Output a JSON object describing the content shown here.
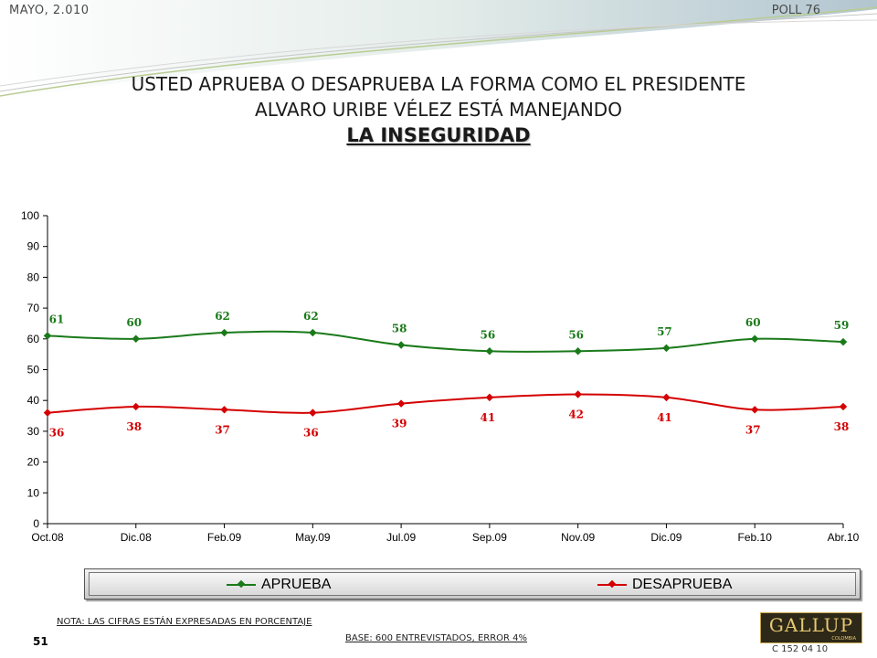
{
  "header": {
    "date": "MAYO, 2.010",
    "poll": "POLL 76"
  },
  "title": {
    "line1": "USTED APRUEBA O DESAPRUEBA LA FORMA COMO EL PRESIDENTE",
    "line2": "ALVARO URIBE VÉLEZ ESTÁ MANEJANDO",
    "line3": "LA INSEGURIDAD"
  },
  "chart_data": {
    "type": "line",
    "categories": [
      "Oct.08",
      "Dic.08",
      "Feb.09",
      "May.09",
      "Jul.09",
      "Sep.09",
      "Nov.09",
      "Dic.09",
      "Feb.10",
      "Abr.10"
    ],
    "series": [
      {
        "name": "APRUEBA",
        "color": "#1a7a1a",
        "values": [
          61,
          60,
          62,
          62,
          58,
          56,
          56,
          57,
          60,
          59
        ]
      },
      {
        "name": "DESAPRUEBA",
        "color": "#d40000",
        "values": [
          36,
          38,
          37,
          36,
          39,
          41,
          42,
          41,
          37,
          38
        ]
      }
    ],
    "ylim": [
      0,
      100
    ],
    "yticks": [
      "0",
      "10",
      "20",
      "30",
      "40",
      "50",
      "60",
      "70",
      "80",
      "90",
      "100"
    ],
    "grid": false,
    "legend_position": "bottom"
  },
  "legend": {
    "approve": "APRUEBA",
    "disapprove": "DESAPRUEBA"
  },
  "footer": {
    "note": "NOTA: LAS CIFRAS ESTÁN EXPRESADAS EN PORCENTAJE",
    "base": "BASE: 600 ENTREVISTADOS, ERROR 4%",
    "page_number": "51",
    "code": "C 152 04 10",
    "logo_text": "GALLUP",
    "logo_sub": "COLOMBIA"
  }
}
